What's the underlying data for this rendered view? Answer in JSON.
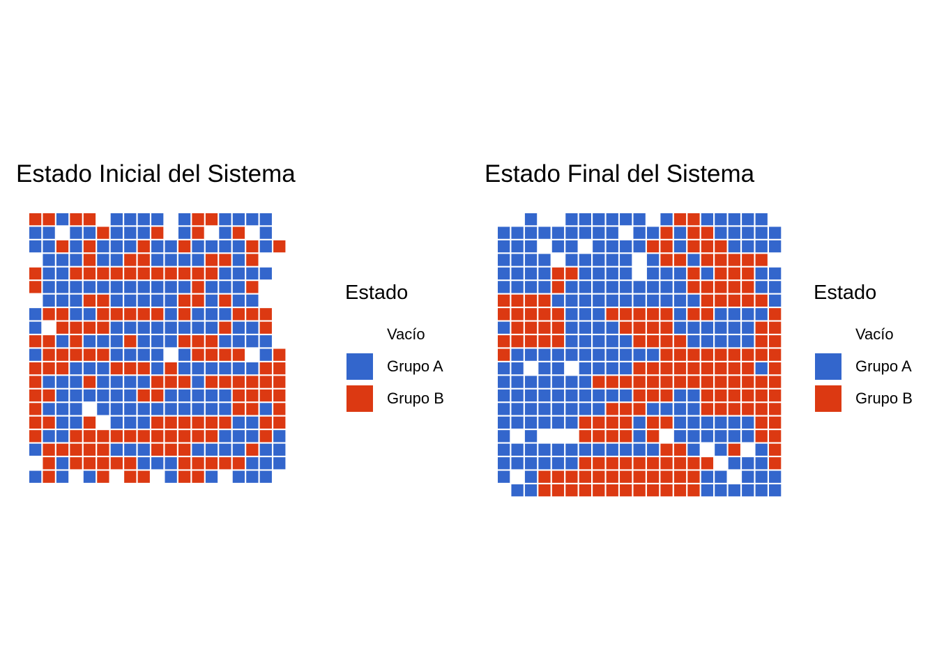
{
  "colors": {
    "empty": "#ffffff",
    "A": "#3366cc",
    "B": "#dc3912"
  },
  "legend_title": "Estado",
  "legend_items": [
    {
      "key": "empty",
      "label": "Vacío"
    },
    {
      "key": "A",
      "label": "Grupo A"
    },
    {
      "key": "B",
      "label": "Grupo B"
    }
  ],
  "chart_data": [
    {
      "type": "heatmap",
      "title": "Estado Inicial del Sistema",
      "legend": "right",
      "grid": false,
      "encoding": "rows top to bottom, columns left to right; '.' = Vacío, 'A' = Grupo A, 'B' = Grupo B",
      "rows": [
        "BBABB.AAAA.ABBAAAA.",
        "AA.AABAAAB.AB.AB.A.",
        "AABABAAABAABAAAABAB",
        ".AAABAABBAAAABBAB..",
        "BAABBBBBBBBBBBAAAA.",
        "BAAAAAAAAAAABAAAB..",
        ".AAABBAAAAABBABAA..",
        "ABBAABBBBBABAAABBB.",
        "A.BBBBAAAAAAAABAAB.",
        "BBABAAABAAABBBAAAA.",
        "ABBBBBAAAA.ABBBB.AB",
        "BBBAAABBBABAAAAAABB",
        "BAAABAAAABBBABBBBBB",
        "BBAAAAAABBAAAAABBBB",
        "BAAA.AAAAAAAAAABBAB",
        "BBAAB.AAABBBBBBAABB",
        "BAABBBBBBBBBBBAAABA",
        "ABBBBBAAABBBAAAABAA",
        ".BABBBBBAAABBBBBAAA",
        "ABA.AB.BB.ABBA.AAA."
      ]
    },
    {
      "type": "heatmap",
      "title": "Estado Final del Sistema",
      "legend": "right",
      "grid": false,
      "encoding": "rows top to bottom, columns left to right; '.' = Vacío, 'A' = Grupo A, 'B' = Grupo B",
      "rows": [
        "..A..AAAAAA.ABBAAAAA.",
        "AAAAAAAAA.AABABBAAAAA",
        "AAA.AA.AAAABBABBBAAAA",
        "AAAA.AAAAA.ABBABBBBB.",
        "AAAABBAAAA.AAABABBBAA",
        "AAAABAAAAAAAAABBBBBAA",
        "BBBBAAAAAAAAAAABBBBBA",
        "BBBBBAAABBBBBABBAAAAB",
        "ABBBBAAAABBBBAAAAAABB",
        "BBBBBAAAAABBBBAAAAABB",
        "BAAAAAAAAAAABBBBBBBBB",
        "AA.AA.AAAABBBBBBBBBAB",
        "AAAAAAABBBBBBBBBBBBBB",
        "AAAAAAAAAABBBAABBBBBB",
        "AAAAAAAABBBAAAABBBBBB",
        "AAAAAABBBBABBAAAAAABB",
        "A.A...BBBBAB.AAAAAABB",
        "AAAAAAAAAAAABBA.AB.AB",
        "AAAAAABBBBBBBBBB.AAAB",
        "A.ABBBBBBBBBBBBAA.AAA",
        ".AABBBBBBBBBBBBAAAAAA"
      ]
    }
  ]
}
